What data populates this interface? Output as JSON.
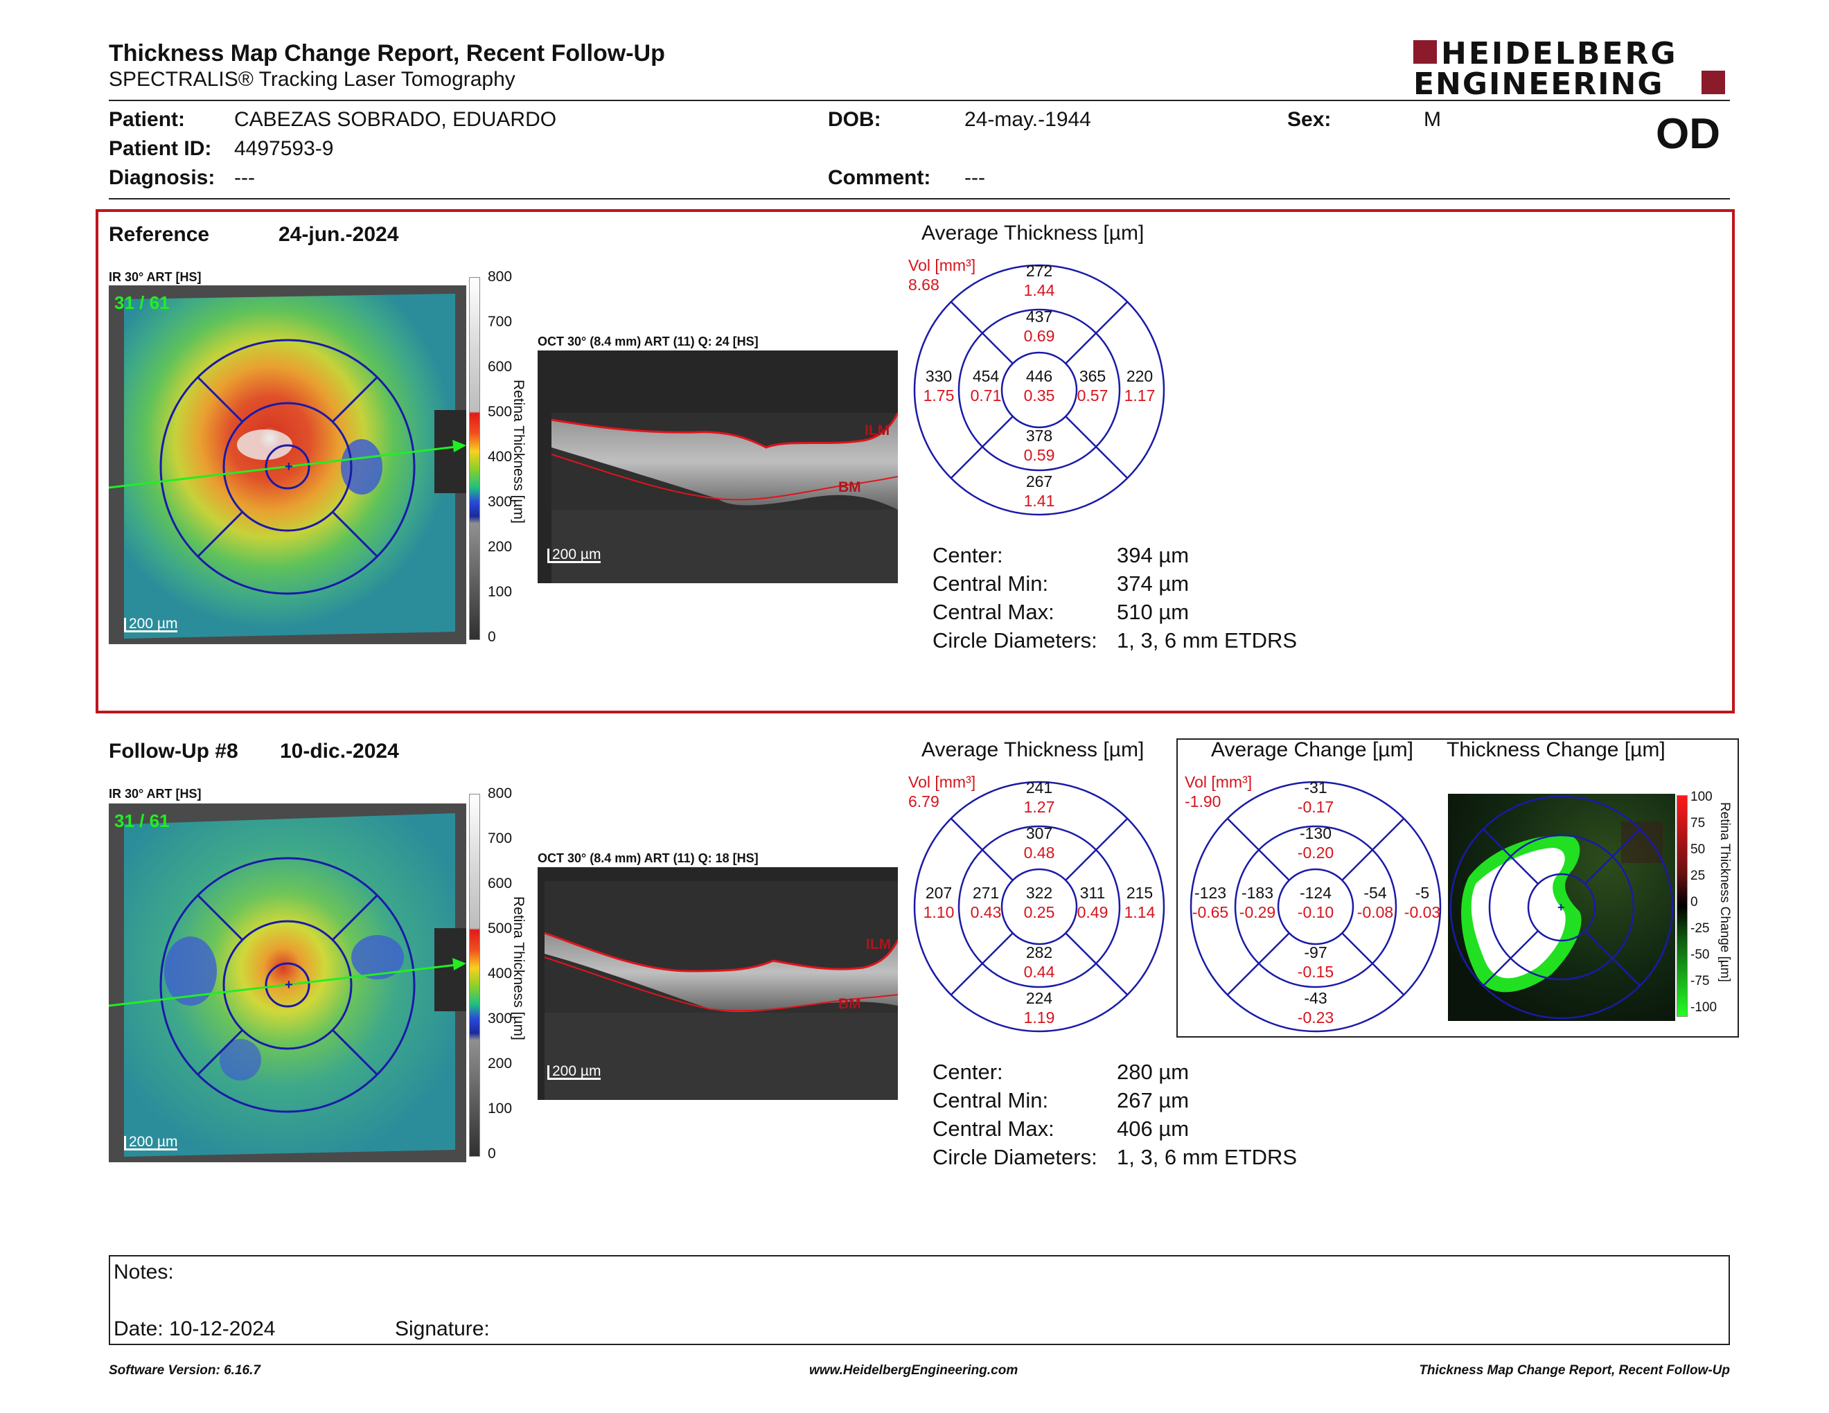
{
  "header": {
    "title": "Thickness Map Change Report, Recent Follow-Up",
    "subtitle": "SPECTRALIS® Tracking Laser Tomography",
    "brand_line1": "HEIDELBERG",
    "brand_line2": "ENGINEERING",
    "eye": "OD"
  },
  "patient": {
    "patient_label": "Patient:",
    "patient_value": "CABEZAS SOBRADO, EDUARDO",
    "dob_label": "DOB:",
    "dob_value": "24-may.-1944",
    "sex_label": "Sex:",
    "sex_value": "M",
    "id_label": "Patient ID:",
    "id_value": "4497593-9",
    "diagnosis_label": "Diagnosis:",
    "diagnosis_value": "---",
    "comment_label": "Comment:",
    "comment_value": "---"
  },
  "reference": {
    "label": "Reference",
    "date": "24-jun.-2024",
    "ir_label": "IR 30° ART [HS]",
    "frame": "31 / 61",
    "oct_label": "OCT 30° (8.4 mm) ART (11) Q: 24 [HS]",
    "scale_ir": "200 µm",
    "scale_oct": "200 µm",
    "avg_title": "Average Thickness [µm]",
    "vol_label": "Vol [mm³]",
    "vol_value": "8.68",
    "grid": {
      "outer_top": "272",
      "outer_top_v": "1.44",
      "inner_top": "437",
      "inner_top_v": "0.69",
      "outer_left": "330",
      "outer_left_v": "1.75",
      "inner_left": "454",
      "inner_left_v": "0.71",
      "center": "446",
      "center_v": "0.35",
      "inner_right": "365",
      "inner_right_v": "0.57",
      "outer_right": "220",
      "outer_right_v": "1.17",
      "inner_bottom": "378",
      "inner_bottom_v": "0.59",
      "outer_bottom": "267",
      "outer_bottom_v": "1.41"
    },
    "stats": {
      "center_label": "Center:",
      "center_value": "394 µm",
      "min_label": "Central Min:",
      "min_value": "374 µm",
      "max_label": "Central Max:",
      "max_value": "510 µm",
      "diam_label": "Circle Diameters:",
      "diam_value": "1, 3, 6 mm ETDRS"
    }
  },
  "followup": {
    "label": "Follow-Up #8",
    "date": "10-dic.-2024",
    "ir_label": "IR 30° ART [HS]",
    "frame": "31 / 61",
    "oct_label": "OCT 30° (8.4 mm) ART (11) Q: 18 [HS]",
    "scale_ir": "200 µm",
    "scale_oct": "200 µm",
    "avg_title": "Average Thickness [µm]",
    "vol_label": "Vol [mm³]",
    "vol_value": "6.79",
    "grid": {
      "outer_top": "241",
      "outer_top_v": "1.27",
      "inner_top": "307",
      "inner_top_v": "0.48",
      "outer_left": "207",
      "outer_left_v": "1.10",
      "inner_left": "271",
      "inner_left_v": "0.43",
      "center": "322",
      "center_v": "0.25",
      "inner_right": "311",
      "inner_right_v": "0.49",
      "outer_right": "215",
      "outer_right_v": "1.14",
      "inner_bottom": "282",
      "inner_bottom_v": "0.44",
      "outer_bottom": "224",
      "outer_bottom_v": "1.19"
    },
    "stats": {
      "center_label": "Center:",
      "center_value": "280 µm",
      "min_label": "Central Min:",
      "min_value": "267 µm",
      "max_label": "Central Max:",
      "max_value": "406 µm",
      "diam_label": "Circle Diameters:",
      "diam_value": "1, 3, 6 mm ETDRS"
    },
    "change_title": "Average Change [µm]",
    "change_vol_label": "Vol [mm³]",
    "change_vol_value": "-1.90",
    "change": {
      "outer_top": "-31",
      "outer_top_v": "-0.17",
      "inner_top": "-130",
      "inner_top_v": "-0.20",
      "outer_left": "-123",
      "outer_left_v": "-0.65",
      "inner_left": "-183",
      "inner_left_v": "-0.29",
      "center": "-124",
      "center_v": "-0.10",
      "inner_right": "-54",
      "inner_right_v": "-0.08",
      "outer_right": "-5",
      "outer_right_v": "-0.03",
      "inner_bottom": "-97",
      "inner_bottom_v": "-0.15",
      "outer_bottom": "-43",
      "outer_bottom_v": "-0.23"
    },
    "thickness_change_title": "Thickness Change [µm]",
    "change_scale_title": "Retina Thickness Change [µm]",
    "change_ticks": [
      "100",
      "75",
      "50",
      "25",
      "0",
      "-25",
      "-50",
      "-75",
      "-100"
    ]
  },
  "colorbar": {
    "title": "Retina Thickness [µm]",
    "ticks": [
      "800",
      "700",
      "600",
      "500",
      "400",
      "300",
      "200",
      "100",
      "0"
    ]
  },
  "oct_labels": {
    "ilm": "ILM",
    "bm": "BM"
  },
  "notes": {
    "notes_label": "Notes:",
    "date_label": "Date: 10-12-2024",
    "signature_label": "Signature:"
  },
  "footer": {
    "left": "Software Version: 6.16.7",
    "center": "www.HeidelbergEngineering.com",
    "right": "Thickness Map Change Report, Recent Follow-Up"
  },
  "colors": {
    "accent_red": "#c0141c",
    "grid_blue": "#1a1aa8",
    "brand": "#8b1a2b"
  }
}
